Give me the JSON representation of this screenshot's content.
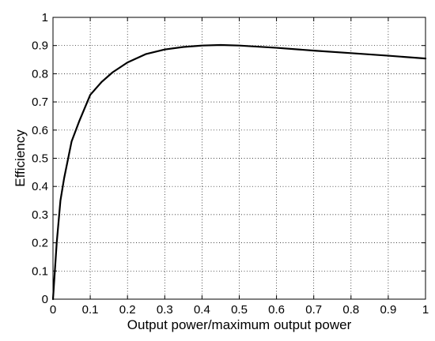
{
  "chart_data": {
    "type": "line",
    "xlabel": "Output power/maximum output power",
    "ylabel": "Efficiency",
    "xlim": [
      0,
      1
    ],
    "ylim": [
      0,
      1
    ],
    "x_ticks": [
      "0",
      "0.1",
      "0.2",
      "0.3",
      "0.4",
      "0.5",
      "0.6",
      "0.7",
      "0.8",
      "0.9",
      "1"
    ],
    "y_ticks": [
      "0",
      "0.1",
      "0.2",
      "0.3",
      "0.4",
      "0.5",
      "0.6",
      "0.7",
      "0.8",
      "0.9",
      "1"
    ],
    "grid": true,
    "line_color": "#000000",
    "series": [
      {
        "x": [
          0,
          0.005,
          0.01,
          0.02,
          0.03,
          0.05,
          0.07,
          0.1,
          0.13,
          0.16,
          0.2,
          0.25,
          0.3,
          0.35,
          0.4,
          0.45,
          0.5,
          0.6,
          0.7,
          0.8,
          0.9,
          1.0
        ],
        "values": [
          0,
          0.1,
          0.2,
          0.35,
          0.43,
          0.56,
          0.63,
          0.725,
          0.77,
          0.805,
          0.84,
          0.87,
          0.886,
          0.895,
          0.9,
          0.902,
          0.9,
          0.892,
          0.882,
          0.873,
          0.864,
          0.854
        ]
      }
    ]
  }
}
